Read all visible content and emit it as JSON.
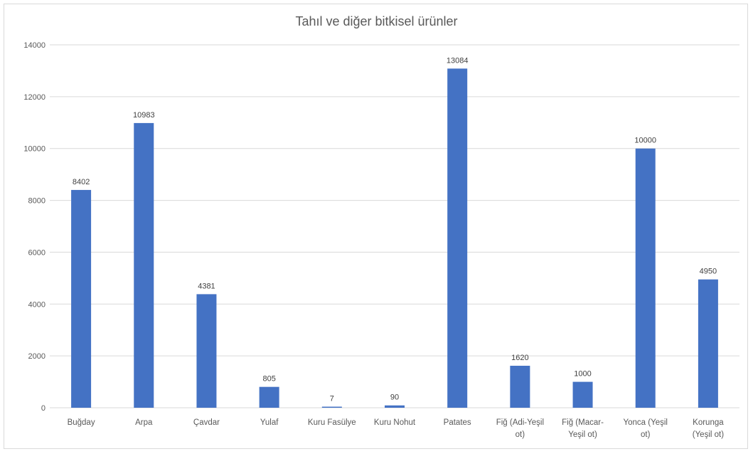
{
  "chart_data": {
    "type": "bar",
    "title": "Tahıl ve diğer bitkisel ürünler",
    "categories": [
      [
        "Buğday"
      ],
      [
        "Arpa"
      ],
      [
        "Çavdar"
      ],
      [
        "Yulaf"
      ],
      [
        "Kuru Fasülye"
      ],
      [
        "Kuru Nohut"
      ],
      [
        "Patates"
      ],
      [
        "Fiğ (Adi-Yeşil",
        "ot)"
      ],
      [
        "Fiğ (Macar-",
        "Yeşil ot)"
      ],
      [
        "Yonca (Yeşil",
        "ot)"
      ],
      [
        "Korunga",
        "(Yeşil ot)"
      ]
    ],
    "values": [
      8402,
      10983,
      4381,
      805,
      7,
      90,
      13084,
      1620,
      1000,
      10000,
      4950
    ],
    "data_labels": [
      "8402",
      "10983",
      "4381",
      "805",
      "7",
      "90",
      "13084",
      "1620",
      "1000",
      "10000",
      "4950"
    ],
    "ylim": [
      0,
      14000
    ],
    "yticks": [
      0,
      2000,
      4000,
      6000,
      8000,
      10000,
      12000,
      14000
    ],
    "ytick_labels": [
      "0",
      "2000",
      "4000",
      "6000",
      "8000",
      "10000",
      "12000",
      "14000"
    ],
    "grid": true,
    "legend": "none",
    "bar_color": "#4472c4",
    "grid_color": "#d9d9d9"
  }
}
